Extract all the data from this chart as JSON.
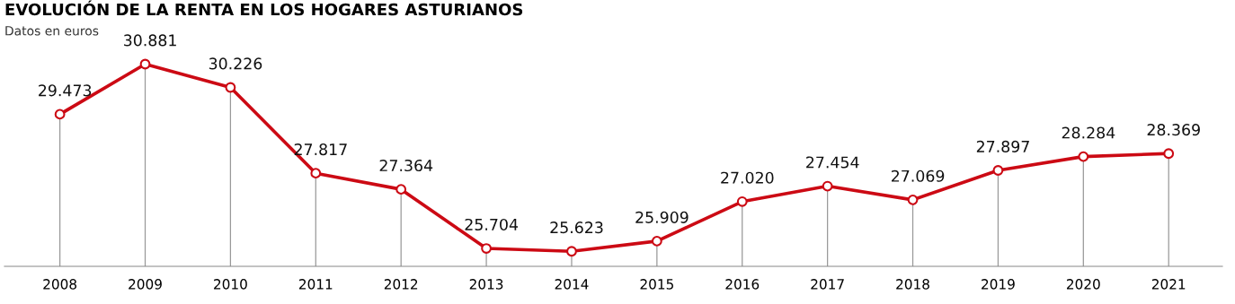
{
  "chart_data": {
    "type": "line",
    "title": "EVOLUCIÓN DE LA RENTA EN LOS HOGARES ASTURIANOS",
    "subtitle": "Datos en euros",
    "categories": [
      "2008",
      "2009",
      "2010",
      "2011",
      "2012",
      "2013",
      "2014",
      "2015",
      "2016",
      "2017",
      "2018",
      "2019",
      "2020",
      "2021"
    ],
    "series": [
      {
        "color": "#cc0a14",
        "values": [
          29473,
          30881,
          30226,
          27817,
          27364,
          25704,
          25623,
          25909,
          27020,
          27454,
          27069,
          27897,
          28284,
          28369
        ],
        "value_labels": [
          "29.473",
          "30.881",
          "30.226",
          "27.817",
          "27.364",
          "25.704",
          "25.623",
          "25.909",
          "27.020",
          "27.454",
          "27.069",
          "27.897",
          "28.284",
          "28.369"
        ]
      }
    ],
    "tick_labels": "x",
    "grid": "x",
    "marker": "circle",
    "line_style": "solid"
  }
}
